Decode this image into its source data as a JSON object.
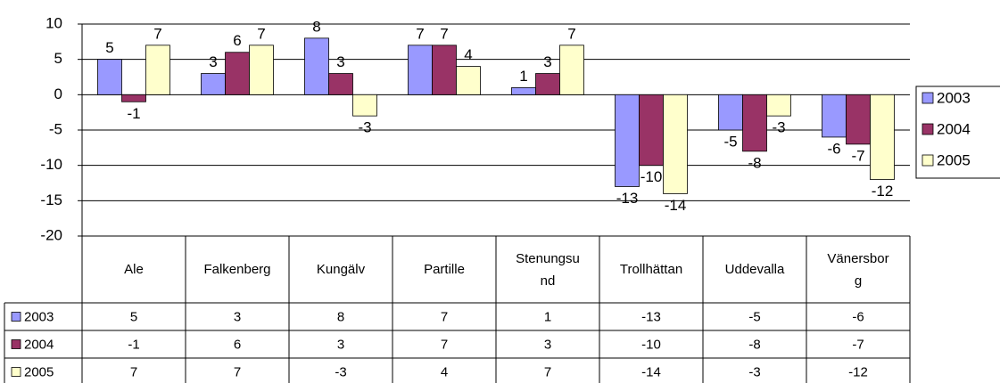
{
  "chart_data": {
    "type": "bar",
    "categories": [
      "Ale",
      "Falkenberg",
      "Kungälv",
      "Partille",
      "Stenungsund",
      "Trollhättan",
      "Uddevalla",
      "Vänersborg"
    ],
    "series": [
      {
        "name": "2003",
        "color": "#9999ff",
        "values": [
          5,
          3,
          8,
          7,
          1,
          -13,
          -5,
          -6
        ]
      },
      {
        "name": "2004",
        "color": "#993366",
        "values": [
          -1,
          6,
          3,
          7,
          3,
          -10,
          -8,
          -7
        ]
      },
      {
        "name": "2005",
        "color": "#ffffcc",
        "values": [
          7,
          7,
          -3,
          4,
          7,
          -14,
          -3,
          -12
        ]
      }
    ],
    "ylim": [
      -20,
      10
    ],
    "yticks": [
      -20,
      -15,
      -10,
      -5,
      0,
      5,
      10
    ],
    "grid": true,
    "legend": "right",
    "data_table": true
  }
}
